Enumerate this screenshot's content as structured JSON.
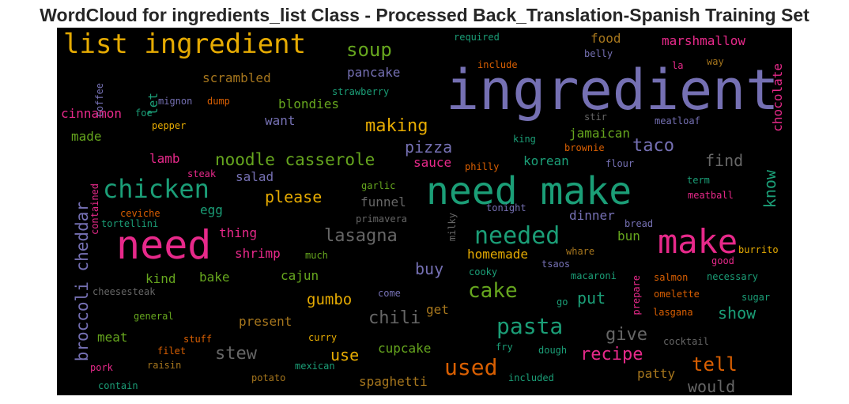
{
  "title": "WordCloud for ingredients_list Class - Processed Back_Translation-Spanish Training Set",
  "palette": {
    "purple": "#7570b3",
    "green": "#1b9e77",
    "orange": "#d95f02",
    "pink": "#e7298a",
    "lime": "#66a61e",
    "gold": "#e6ab02",
    "brown": "#a6761d",
    "gray": "#666666"
  },
  "words": [
    {
      "text": "ingredient",
      "color": "#7570b3"
    },
    {
      "text": "need make",
      "color": "#1b9e77"
    },
    {
      "text": "need",
      "color": "#e7298a"
    },
    {
      "text": "make",
      "color": "#e7298a"
    },
    {
      "text": "list ingredient",
      "color": "#e6ab02"
    },
    {
      "text": "chicken",
      "color": "#1b9e77"
    },
    {
      "text": "needed",
      "color": "#1b9e77"
    },
    {
      "text": "pasta",
      "color": "#1b9e77"
    },
    {
      "text": "cake",
      "color": "#66a61e"
    },
    {
      "text": "used",
      "color": "#d95f02"
    },
    {
      "text": "soup",
      "color": "#66a61e"
    },
    {
      "text": "broccoli cheddar",
      "color": "#7570b3"
    },
    {
      "text": "noodle casserole",
      "color": "#66a61e"
    },
    {
      "text": "lasagna",
      "color": "#666666"
    },
    {
      "text": "chili",
      "color": "#666666"
    },
    {
      "text": "stew",
      "color": "#666666"
    },
    {
      "text": "making",
      "color": "#e6ab02"
    },
    {
      "text": "taco",
      "color": "#7570b3"
    },
    {
      "text": "know",
      "color": "#1b9e77"
    },
    {
      "text": "tell",
      "color": "#d95f02"
    },
    {
      "text": "recipe",
      "color": "#e7298a"
    },
    {
      "text": "give",
      "color": "#666666"
    },
    {
      "text": "would",
      "color": "#666666"
    },
    {
      "text": "pizza",
      "color": "#7570b3"
    },
    {
      "text": "please",
      "color": "#e6ab02"
    },
    {
      "text": "find",
      "color": "#666666"
    },
    {
      "text": "show",
      "color": "#1b9e77"
    },
    {
      "text": "put",
      "color": "#1b9e77"
    },
    {
      "text": "gumbo",
      "color": "#e6ab02"
    },
    {
      "text": "buy",
      "color": "#7570b3"
    },
    {
      "text": "use",
      "color": "#e6ab02"
    },
    {
      "text": "chocolate",
      "color": "#e7298a"
    },
    {
      "text": "marshmallow",
      "color": "#e7298a"
    },
    {
      "text": "scrambled",
      "color": "#a6761d"
    },
    {
      "text": "pancake",
      "color": "#7570b3"
    },
    {
      "text": "blondies",
      "color": "#66a61e"
    },
    {
      "text": "jamaican",
      "color": "#66a61e"
    },
    {
      "text": "cinnamon",
      "color": "#e7298a"
    },
    {
      "text": "want",
      "color": "#7570b3"
    },
    {
      "text": "made",
      "color": "#66a61e"
    },
    {
      "text": "lamb",
      "color": "#e7298a"
    },
    {
      "text": "salad",
      "color": "#7570b3"
    },
    {
      "text": "sauce",
      "color": "#e7298a"
    },
    {
      "text": "korean",
      "color": "#1b9e77"
    },
    {
      "text": "egg",
      "color": "#1b9e77"
    },
    {
      "text": "funnel",
      "color": "#666666"
    },
    {
      "text": "thing",
      "color": "#e7298a"
    },
    {
      "text": "shrimp",
      "color": "#e7298a"
    },
    {
      "text": "dinner",
      "color": "#7570b3"
    },
    {
      "text": "bun",
      "color": "#66a61e"
    },
    {
      "text": "homemade",
      "color": "#e6ab02"
    },
    {
      "text": "kind",
      "color": "#66a61e"
    },
    {
      "text": "bake",
      "color": "#66a61e"
    },
    {
      "text": "cajun",
      "color": "#66a61e"
    },
    {
      "text": "present",
      "color": "#a6761d"
    },
    {
      "text": "get",
      "color": "#a6761d"
    },
    {
      "text": "meat",
      "color": "#66a61e"
    },
    {
      "text": "cupcake",
      "color": "#66a61e"
    },
    {
      "text": "spaghetti",
      "color": "#a6761d"
    },
    {
      "text": "patty",
      "color": "#a6761d"
    },
    {
      "text": "food",
      "color": "#a6761d"
    },
    {
      "text": "let",
      "color": "#1b9e77"
    },
    {
      "text": "required",
      "color": "#1b9e77"
    },
    {
      "text": "belly",
      "color": "#7570b3"
    },
    {
      "text": "include",
      "color": "#d95f02"
    },
    {
      "text": "la",
      "color": "#e7298a"
    },
    {
      "text": "way",
      "color": "#a6761d"
    },
    {
      "text": "coffee",
      "color": "#7570b3"
    },
    {
      "text": "strawberry",
      "color": "#1b9e77"
    },
    {
      "text": "mignon",
      "color": "#7570b3"
    },
    {
      "text": "dump",
      "color": "#d95f02"
    },
    {
      "text": "foe",
      "color": "#1b9e77"
    },
    {
      "text": "stir",
      "color": "#666666"
    },
    {
      "text": "meatloaf",
      "color": "#7570b3"
    },
    {
      "text": "pepper",
      "color": "#e6ab02"
    },
    {
      "text": "king",
      "color": "#1b9e77"
    },
    {
      "text": "brownie",
      "color": "#d95f02"
    },
    {
      "text": "philly",
      "color": "#d95f02"
    },
    {
      "text": "flour",
      "color": "#7570b3"
    },
    {
      "text": "steak",
      "color": "#e7298a"
    },
    {
      "text": "term",
      "color": "#1b9e77"
    },
    {
      "text": "garlic",
      "color": "#66a61e"
    },
    {
      "text": "meatball",
      "color": "#e7298a"
    },
    {
      "text": "ceviche",
      "color": "#d95f02"
    },
    {
      "text": "tortellini",
      "color": "#1b9e77"
    },
    {
      "text": "contained",
      "color": "#e7298a"
    },
    {
      "text": "primavera",
      "color": "#666666"
    },
    {
      "text": "milky",
      "color": "#666666"
    },
    {
      "text": "tonight",
      "color": "#7570b3"
    },
    {
      "text": "bread",
      "color": "#7570b3"
    },
    {
      "text": "much",
      "color": "#66a61e"
    },
    {
      "text": "whare",
      "color": "#a6761d"
    },
    {
      "text": "burrito",
      "color": "#e6ab02"
    },
    {
      "text": "tsaos",
      "color": "#7570b3"
    },
    {
      "text": "good",
      "color": "#e7298a"
    },
    {
      "text": "cooky",
      "color": "#1b9e77"
    },
    {
      "text": "macaroni",
      "color": "#1b9e77"
    },
    {
      "text": "prepare",
      "color": "#e7298a"
    },
    {
      "text": "salmon",
      "color": "#d95f02"
    },
    {
      "text": "necessary",
      "color": "#1b9e77"
    },
    {
      "text": "cheesesteak",
      "color": "#666666"
    },
    {
      "text": "come",
      "color": "#7570b3"
    },
    {
      "text": "go",
      "color": "#1b9e77"
    },
    {
      "text": "omelette",
      "color": "#d95f02"
    },
    {
      "text": "sugar",
      "color": "#1b9e77"
    },
    {
      "text": "lasgana",
      "color": "#d95f02"
    },
    {
      "text": "general",
      "color": "#66a61e"
    },
    {
      "text": "stuff",
      "color": "#d95f02"
    },
    {
      "text": "curry",
      "color": "#e6ab02"
    },
    {
      "text": "filet",
      "color": "#d95f02"
    },
    {
      "text": "fry",
      "color": "#1b9e77"
    },
    {
      "text": "dough",
      "color": "#1b9e77"
    },
    {
      "text": "cocktail",
      "color": "#666666"
    },
    {
      "text": "raisin",
      "color": "#a6761d"
    },
    {
      "text": "mexican",
      "color": "#1b9e77"
    },
    {
      "text": "pork",
      "color": "#e7298a"
    },
    {
      "text": "potato",
      "color": "#a6761d"
    },
    {
      "text": "included",
      "color": "#1b9e77"
    },
    {
      "text": "contain",
      "color": "#1b9e77"
    }
  ]
}
